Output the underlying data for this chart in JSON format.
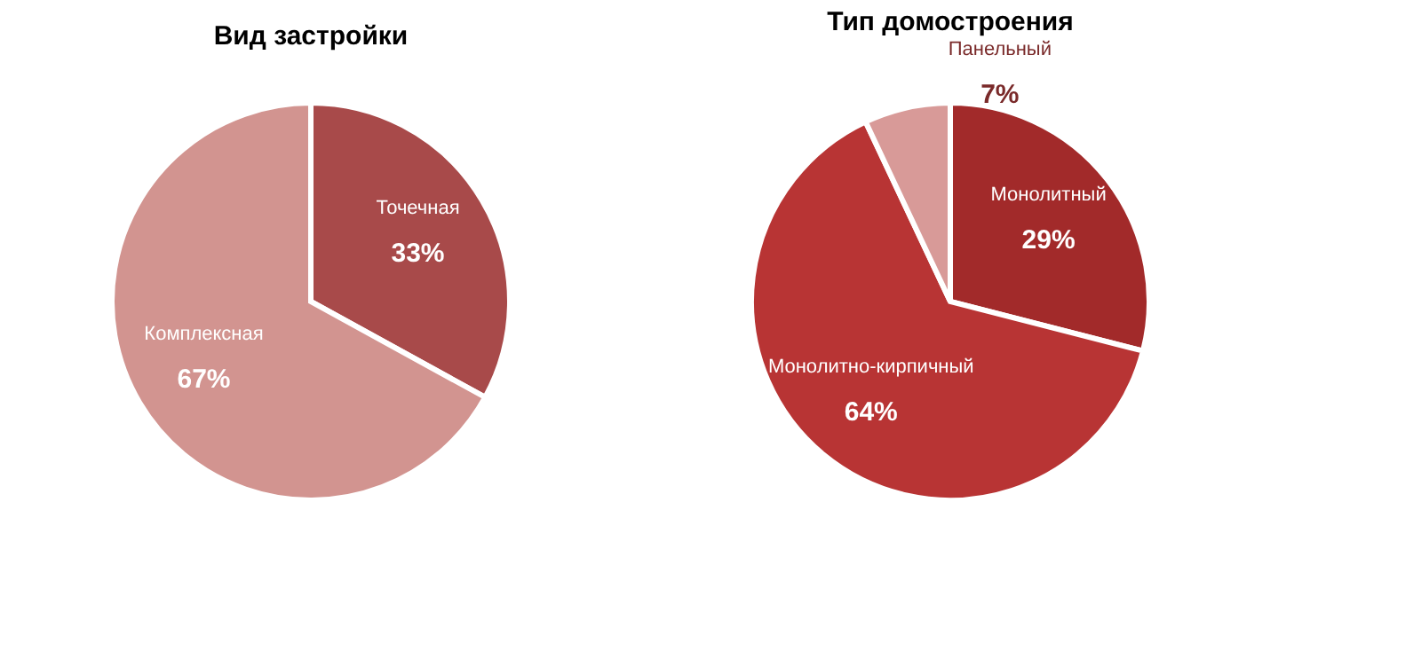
{
  "chart_data": [
    {
      "type": "pie",
      "title": "Вид застройки",
      "categories": [
        "Точечная",
        "Комплексная"
      ],
      "values": [
        33,
        67
      ],
      "value_labels": [
        "33%",
        "67%"
      ],
      "colors": [
        "#a84a4a",
        "#d29490"
      ]
    },
    {
      "type": "pie",
      "title": "Тип домостроения",
      "categories": [
        "Монолитный",
        "Монолитно-кирпичный",
        "Панельный"
      ],
      "values": [
        29,
        64,
        7
      ],
      "value_labels": [
        "29%",
        "64%",
        "7%"
      ],
      "colors": [
        "#a22a2a",
        "#b83434",
        "#d89a98"
      ]
    }
  ]
}
